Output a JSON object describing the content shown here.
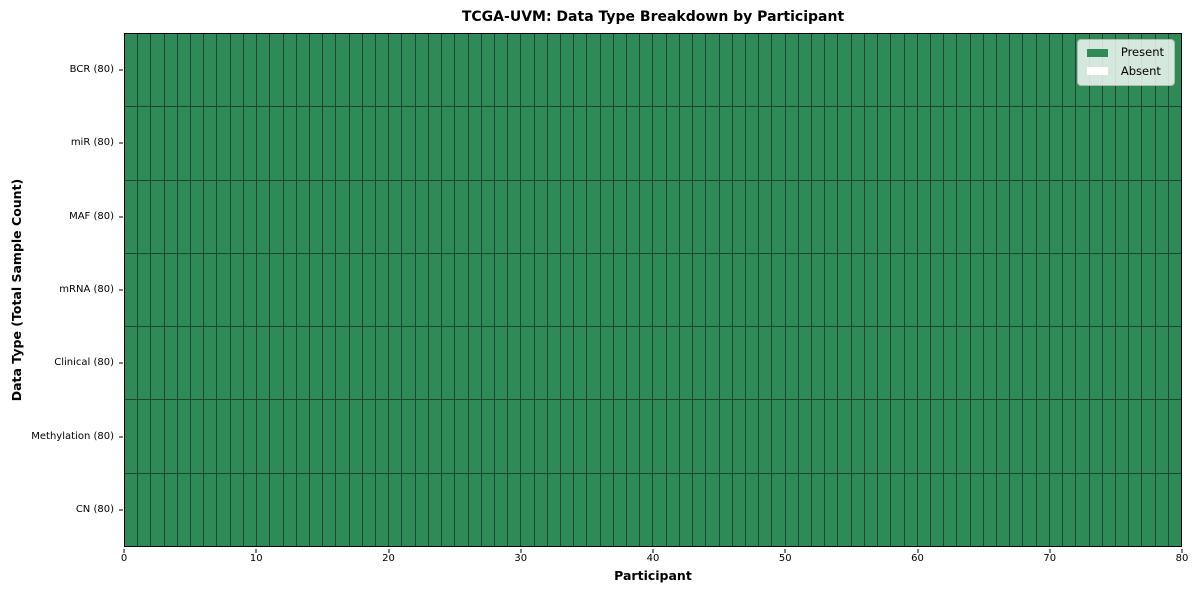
{
  "chart_data": {
    "type": "heatmap",
    "title": "TCGA-UVM: Data Type Breakdown by Participant",
    "xlabel": "Participant",
    "ylabel": "Data Type (Total Sample Count)",
    "x_range": [
      0,
      80
    ],
    "x_ticks": [
      0,
      10,
      20,
      30,
      40,
      50,
      60,
      70,
      80
    ],
    "n_participants": 80,
    "rows": [
      {
        "label": "BCR (80)",
        "present_count": 80,
        "absent_count": 0
      },
      {
        "label": "miR (80)",
        "present_count": 80,
        "absent_count": 0
      },
      {
        "label": "MAF (80)",
        "present_count": 80,
        "absent_count": 0
      },
      {
        "label": "mRNA (80)",
        "present_count": 80,
        "absent_count": 0
      },
      {
        "label": "Clinical (80)",
        "present_count": 80,
        "absent_count": 0
      },
      {
        "label": "Methylation (80)",
        "present_count": 80,
        "absent_count": 0
      },
      {
        "label": "CN (80)",
        "present_count": 80,
        "absent_count": 0
      }
    ],
    "legend": [
      {
        "label": "Present",
        "color": "#2e8b57"
      },
      {
        "label": "Absent",
        "color": "#ffffff"
      }
    ],
    "legend_position": "upper right",
    "grid": true,
    "colors": {
      "present": "#2e8b57",
      "absent": "#ffffff",
      "cell_border": "#1e4530",
      "spine": "#000000"
    }
  }
}
